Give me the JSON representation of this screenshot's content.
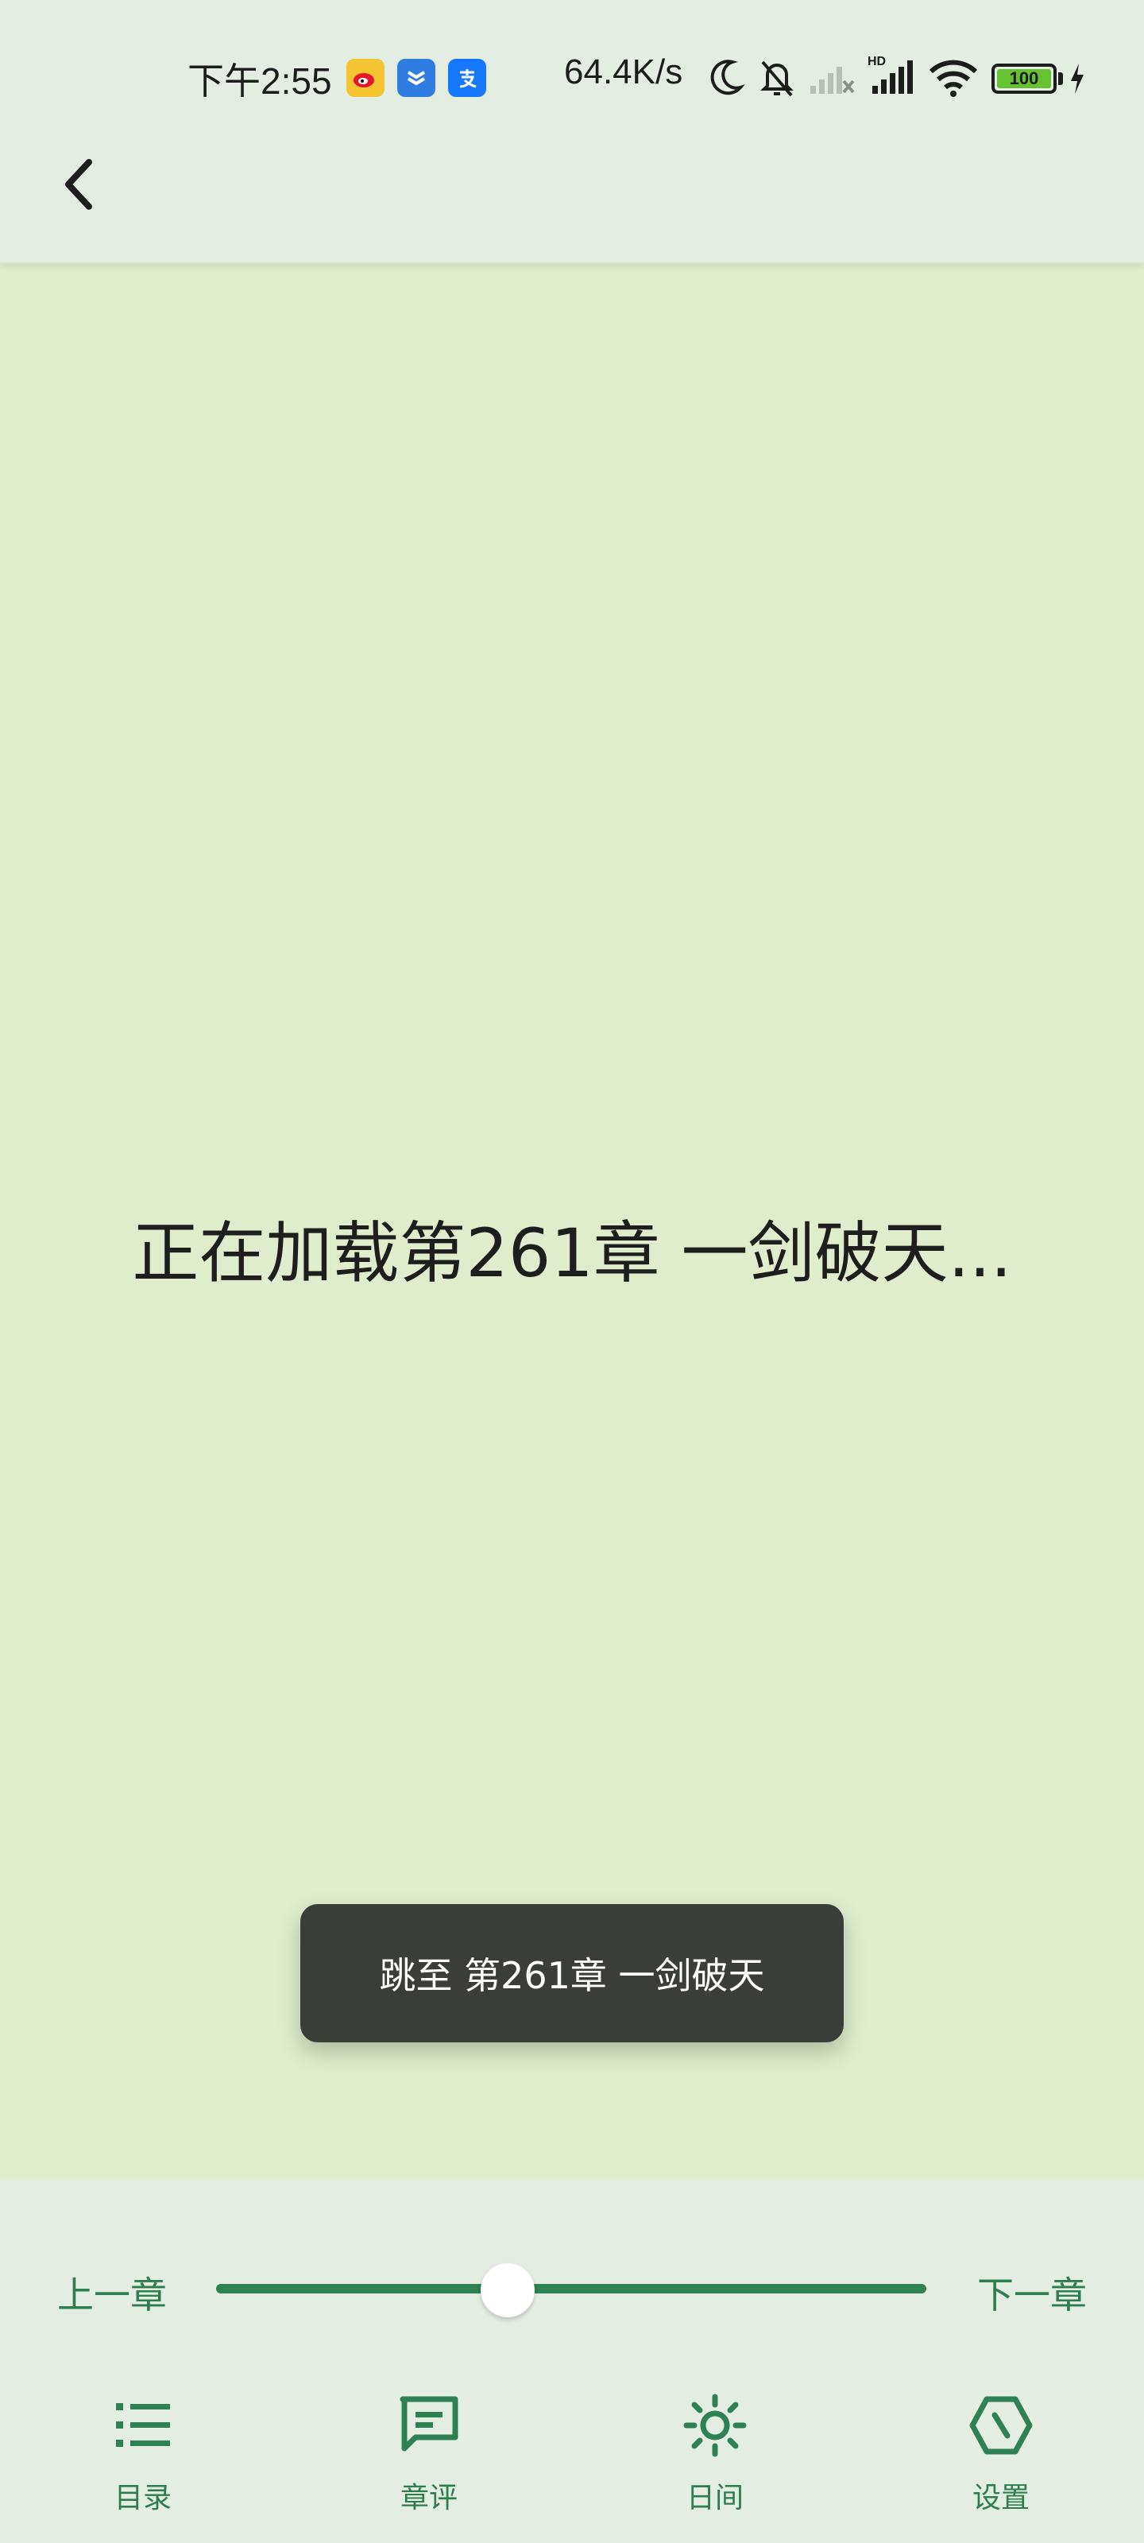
{
  "status_bar": {
    "time": "下午2:55",
    "app_icons": [
      "weibo-icon",
      "task-icon",
      "alipay-icon"
    ],
    "net_speed": "64.4K/s",
    "battery": "100",
    "indicators": [
      "moon-icon",
      "bell-off-icon",
      "signal-no-sim-icon",
      "signal-hd-icon",
      "wifi-icon",
      "charging-icon"
    ]
  },
  "header": {
    "back_icon": "chevron-left-icon"
  },
  "reader": {
    "loading_text": "正在加载第261章 一剑破天..."
  },
  "toast": {
    "text": "跳至 第261章 一剑破天"
  },
  "bottom_bar": {
    "prev_chapter": "上一章",
    "next_chapter": "下一章",
    "progress_fraction": 0.41,
    "nav": [
      {
        "label": "目录",
        "icon": "list-icon"
      },
      {
        "label": "章评",
        "icon": "comment-icon"
      },
      {
        "label": "日间",
        "icon": "sun-icon"
      },
      {
        "label": "设置",
        "icon": "settings-icon"
      }
    ]
  },
  "colors": {
    "accent": "#2e8153",
    "page_background": "#dfedcd",
    "panel_background": "#e3ede2",
    "toast_background": "#3b3d39"
  }
}
